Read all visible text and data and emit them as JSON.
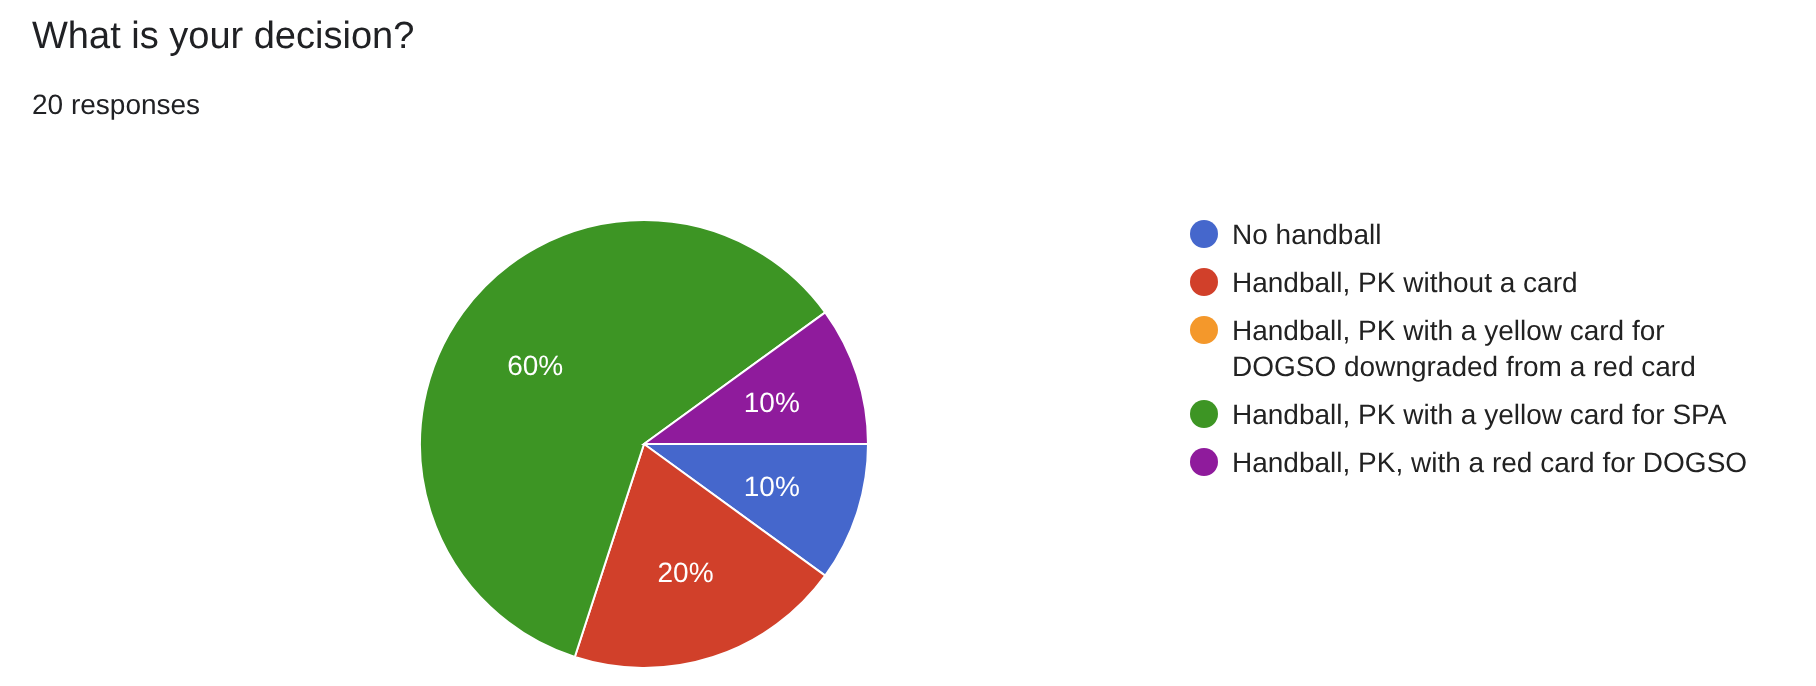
{
  "chart_data": {
    "type": "pie",
    "title": "What is your decision?",
    "subtitle": "20 responses",
    "categories": [
      "No handball",
      "Handball, PK without a card",
      "Handball, PK with a yellow card for DOGSO downgraded from a red card",
      "Handball, PK with a yellow card for SPA",
      "Handball, PK, with a red card for DOGSO"
    ],
    "values": [
      10,
      20,
      0,
      60,
      10
    ],
    "colors": [
      "#4567cc",
      "#d1402a",
      "#f4982b",
      "#3d9524",
      "#8f1b9c"
    ],
    "value_labels": [
      "10%",
      "20%",
      null,
      "60%",
      "10%"
    ],
    "legend": "right"
  }
}
